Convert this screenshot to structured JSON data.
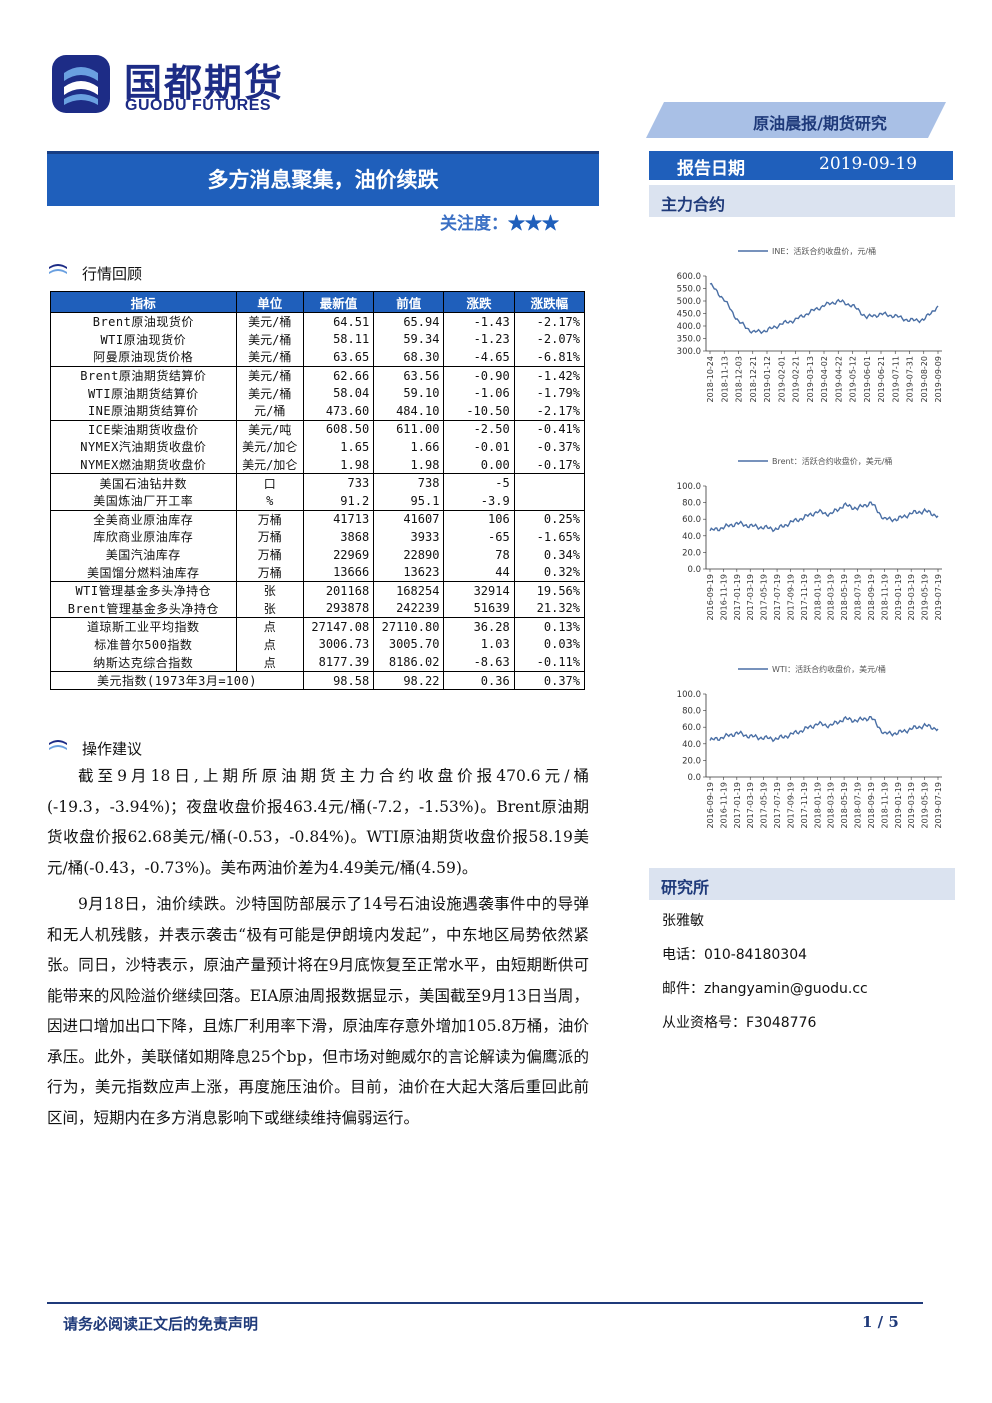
{
  "brand": {
    "name_cn": "国都期货",
    "name_en": "GUODU FUTURES"
  },
  "report": {
    "title": "多方消息聚集，油价续跌",
    "attention_label": "关注度：",
    "attention_stars": "★★★",
    "report_type": "原油晨报/期货研究",
    "date_label": "报告日期",
    "date_value": "2019-09-19"
  },
  "sections": {
    "market_review": "行情回顾",
    "advice": "操作建议",
    "main_contract": "主力合约",
    "institute": "研究所"
  },
  "table": {
    "headers": [
      "指标",
      "单位",
      "最新值",
      "前值",
      "涨跌",
      "涨跌幅"
    ],
    "groups": [
      [
        [
          "Brent原油现货价",
          "美元/桶",
          "64.51",
          "65.94",
          "-1.43",
          "-2.17%"
        ],
        [
          "WTI原油现货价",
          "美元/桶",
          "58.11",
          "59.34",
          "-1.23",
          "-2.07%"
        ],
        [
          "阿曼原油现货价格",
          "美元/桶",
          "63.65",
          "68.30",
          "-4.65",
          "-6.81%"
        ]
      ],
      [
        [
          "Brent原油期货结算价",
          "美元/桶",
          "62.66",
          "63.56",
          "-0.90",
          "-1.42%"
        ],
        [
          "WTI原油期货结算价",
          "美元/桶",
          "58.04",
          "59.10",
          "-1.06",
          "-1.79%"
        ],
        [
          "INE原油期货结算价",
          "元/桶",
          "473.60",
          "484.10",
          "-10.50",
          "-2.17%"
        ]
      ],
      [
        [
          "ICE柴油期货收盘价",
          "美元/吨",
          "608.50",
          "611.00",
          "-2.50",
          "-0.41%"
        ],
        [
          "NYMEX汽油期货收盘价",
          "美元/加仑",
          "1.65",
          "1.66",
          "-0.01",
          "-0.37%"
        ],
        [
          "NYMEX燃油期货收盘价",
          "美元/加仑",
          "1.98",
          "1.98",
          "0.00",
          "-0.17%"
        ]
      ],
      [
        [
          "美国石油钻井数",
          "口",
          "733",
          "738",
          "-5",
          ""
        ],
        [
          "美国炼油厂开工率",
          "%",
          "91.2",
          "95.1",
          "-3.9",
          ""
        ]
      ],
      [
        [
          "全美商业原油库存",
          "万桶",
          "41713",
          "41607",
          "106",
          "0.25%"
        ],
        [
          "库欣商业原油库存",
          "万桶",
          "3868",
          "3933",
          "-65",
          "-1.65%"
        ],
        [
          "美国汽油库存",
          "万桶",
          "22969",
          "22890",
          "78",
          "0.34%"
        ],
        [
          "美国馏分燃料油库存",
          "万桶",
          "13666",
          "13623",
          "44",
          "0.32%"
        ]
      ],
      [
        [
          "WTI管理基金多头净持仓",
          "张",
          "201168",
          "168254",
          "32914",
          "19.56%"
        ],
        [
          "Brent管理基金多头净持仓",
          "张",
          "293878",
          "242239",
          "51639",
          "21.32%"
        ]
      ],
      [
        [
          "道琼斯工业平均指数",
          "点",
          "27147.08",
          "27110.80",
          "36.28",
          "0.13%"
        ],
        [
          "标准普尔500指数",
          "点",
          "3006.73",
          "3005.70",
          "1.03",
          "0.03%"
        ],
        [
          "纳斯达克综合指数",
          "点",
          "8177.39",
          "8186.02",
          "-8.63",
          "-0.11%"
        ]
      ]
    ],
    "usd_index": {
      "label": "美元指数(1973年3月=100)",
      "latest": "98.58",
      "previous": "98.22",
      "change": "0.36",
      "pct": "0.37%"
    }
  },
  "advice": {
    "paragraphs": [
      "截至9月18日,上期所原油期货主力合约收盘价报470.6元/桶(-19.3，-3.94%)；夜盘收盘价报463.4元/桶(-7.2，-1.53%)。Brent原油期货收盘价报62.68美元/桶(-0.53，-0.84%)。WTI原油期货收盘价报58.19美元/桶(-0.43，-0.73%)。美布两油价差为4.49美元/桶(4.59)。",
      "9月18日，油价续跌。沙特国防部展示了14号石油设施遇袭事件中的导弹和无人机残骸，并表示袭击“极有可能是伊朗境内发起”，中东地区局势依然紧张。同日，沙特表示，原油产量预计将在9月底恢复至正常水平，由短期断供可能带来的风险溢价继续回落。EIA原油周报数据显示，美国截至9月13日当周，因进口增加出口下降，且炼厂利用率下滑，原油库存意外增加105.8万桶，油价承压。此外，美联储如期降息25个bp，但市场对鲍威尔的言论解读为偏鹰派的行为，美元指数应声上涨，再度施压油价。目前，油价在大起大落后重回此前区间，短期内在多方消息影响下或继续维持偏弱运行。"
    ]
  },
  "chart_data": [
    {
      "type": "line",
      "legend": "INE：活跃合约收盘价，元/桶",
      "x": [
        "2018-10-24",
        "2018-11-13",
        "2018-12-03",
        "2018-12-21",
        "2019-01-12",
        "2019-02-01",
        "2019-02-21",
        "2019-03-13",
        "2019-04-02",
        "2019-04-22",
        "2019-05-12",
        "2019-06-01",
        "2019-06-21",
        "2019-07-11",
        "2019-07-31",
        "2019-08-20",
        "2019-09-09"
      ],
      "series": [
        {
          "values": [
            568,
            505,
            418,
            375,
            382,
            408,
            425,
            455,
            482,
            500,
            482,
            435,
            448,
            440,
            422,
            425,
            480
          ]
        }
      ],
      "ylim": [
        300,
        600
      ],
      "yticks": [
        "600.0",
        "550.0",
        "500.0",
        "450.0",
        "400.0",
        "350.0",
        "300.0"
      ],
      "legend_position": "top",
      "line_color": "#4a6fa5"
    },
    {
      "type": "line",
      "legend": "Brent：活跃合约收盘价，美元/桶",
      "x": [
        "2016-09-19",
        "2016-11-19",
        "2017-01-19",
        "2017-03-19",
        "2017-05-19",
        "2017-07-19",
        "2017-09-19",
        "2017-11-19",
        "2018-01-19",
        "2018-03-19",
        "2018-05-19",
        "2018-07-19",
        "2018-09-19",
        "2018-11-19",
        "2019-01-19",
        "2019-03-19",
        "2019-05-19",
        "2019-07-19"
      ],
      "series": [
        {
          "values": [
            46,
            50,
            55,
            52,
            50,
            48,
            56,
            62,
            69,
            66,
            77,
            73,
            80,
            60,
            60,
            67,
            70,
            64
          ]
        }
      ],
      "ylim": [
        0,
        100
      ],
      "yticks": [
        "100.0",
        "80.0",
        "60.0",
        "40.0",
        "20.0",
        "0.0"
      ],
      "legend_position": "top",
      "line_color": "#4a6fa5"
    },
    {
      "type": "line",
      "legend": "WTI：活跃合约收盘价，美元/桶",
      "x": [
        "2016-09-19",
        "2016-11-19",
        "2017-01-19",
        "2017-03-19",
        "2017-05-19",
        "2017-07-19",
        "2017-09-19",
        "2017-11-19",
        "2018-01-19",
        "2018-03-19",
        "2018-05-19",
        "2018-07-19",
        "2018-09-19",
        "2018-11-19",
        "2019-01-19",
        "2019-03-19",
        "2019-05-19",
        "2019-07-19"
      ],
      "series": [
        {
          "values": [
            44,
            48,
            53,
            49,
            47,
            46,
            51,
            57,
            64,
            62,
            70,
            68,
            72,
            52,
            53,
            58,
            62,
            58
          ]
        }
      ],
      "ylim": [
        0,
        100
      ],
      "yticks": [
        "100.0",
        "80.0",
        "60.0",
        "40.0",
        "20.0",
        "0.0"
      ],
      "legend_position": "top",
      "line_color": "#4a6fa5"
    }
  ],
  "contact": {
    "name": "张雅敏",
    "phone": "电话：010-84180304",
    "email": "邮件：zhangyamin@guodu.cc",
    "license": "从业资格号：F3048776"
  },
  "footer": {
    "disclaimer": "请务必阅读正文后的免责声明",
    "page": "1 / 5"
  },
  "colors": {
    "brand_blue": "#1f5fbb",
    "dark_blue": "#1f3a7a",
    "light_band": "#dbe3f0",
    "chart_line": "#4a6fa5"
  }
}
